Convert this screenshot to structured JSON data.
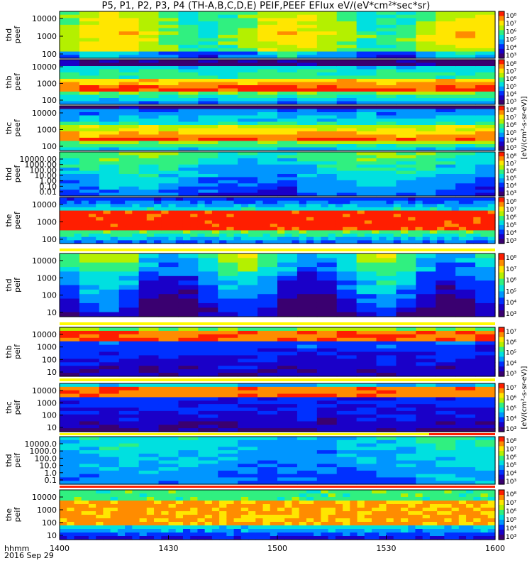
{
  "title": "P5, P1, P2, P3, P4 (TH-A,B,C,D,E) PEIF,PEEF EFlux eV/(eV*cm²*sec*sr)",
  "chart_data": {
    "type": "heatmap",
    "x_ticks": [
      "1400",
      "1430",
      "1500",
      "1530",
      "1600"
    ],
    "x_range": [
      "1400",
      "1600"
    ],
    "footer": {
      "time_label": "hhmm",
      "date_label": "2016 Sep 29"
    },
    "colorbar_label_electron": "[eV/(cm²-s-sr-eV)]",
    "colorbar_label_ion": "[eV/(cm²-s-sr-eV)]",
    "colormap": [
      "#3a0070",
      "#1a00c8",
      "#0030ff",
      "#0096ff",
      "#00e0e0",
      "#30f080",
      "#b4f000",
      "#ffe600",
      "#ff8c00",
      "#ff1e00"
    ],
    "panels": [
      {
        "probe": "thd",
        "species": "peef",
        "y_ticks": [
          "10000",
          "1000",
          "100"
        ],
        "cbar_ticks": [
          "10⁸",
          "10⁷",
          "10⁶",
          "10⁵",
          "10⁴",
          "10³"
        ]
      },
      {
        "probe": "thb",
        "species": "peef",
        "y_ticks": [
          "10000",
          "1000",
          "100"
        ],
        "cbar_ticks": [
          "10⁸",
          "10⁷",
          "10⁶",
          "10⁵",
          "10⁴",
          "10³"
        ]
      },
      {
        "probe": "thc",
        "species": "peef",
        "y_ticks": [
          "10000",
          "1000",
          "100"
        ],
        "cbar_ticks": [
          "10⁸",
          "10⁷",
          "10⁶",
          "10⁵",
          "10⁴",
          "10³"
        ]
      },
      {
        "probe": "thd",
        "species": "peef",
        "y_ticks": [
          "10000.00",
          "1000.00",
          "100.00",
          "10.00",
          "1.00",
          "0.10",
          "0.01"
        ],
        "cbar_ticks": [
          "10⁸",
          "10⁷",
          "10⁶",
          "10⁵",
          "10⁴",
          "10³"
        ]
      },
      {
        "probe": "the",
        "species": "peef",
        "y_ticks": [
          "10000",
          "1000",
          "100"
        ],
        "cbar_ticks": [
          "10⁸",
          "10⁷",
          "10⁶",
          "10⁵",
          "10⁴",
          "10³"
        ]
      },
      {
        "probe": "thd",
        "species": "peif",
        "y_ticks": [
          "10000",
          "1000",
          "100",
          "10"
        ],
        "cbar_ticks": [
          "10⁸",
          "10⁷",
          "10⁶",
          "10⁵",
          "10⁴",
          "10³"
        ]
      },
      {
        "probe": "thb",
        "species": "peif",
        "y_ticks": [
          "10000",
          "1000",
          "100",
          "10"
        ],
        "cbar_ticks": [
          "10⁷",
          "10⁶",
          "10⁵",
          "10⁴",
          "10³"
        ]
      },
      {
        "probe": "thc",
        "species": "peif",
        "y_ticks": [
          "10000",
          "1000",
          "100",
          "10"
        ],
        "cbar_ticks": [
          "10⁷",
          "10⁶",
          "10⁵",
          "10⁴",
          "10³"
        ]
      },
      {
        "probe": "thd",
        "species": "peif",
        "y_ticks": [
          "10000.0",
          "1000.0",
          "100.0",
          "10.0",
          "1.0",
          "0.1"
        ],
        "cbar_ticks": [
          "10⁸",
          "10⁷",
          "10⁶",
          "10⁵",
          "10⁴",
          "10³"
        ]
      },
      {
        "probe": "the",
        "species": "peif",
        "y_ticks": [
          "10000",
          "1000",
          "100",
          "10"
        ],
        "cbar_ticks": [
          "10⁸",
          "10⁷",
          "10⁶",
          "10⁵",
          "10⁴",
          "10³"
        ]
      }
    ]
  }
}
